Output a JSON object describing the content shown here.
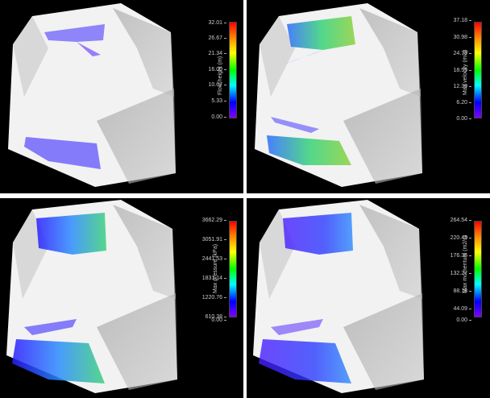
{
  "panels": [
    {
      "id": "flow-height",
      "colorbar_label": "Flow height (m)",
      "ticks": [
        "32.01",
        "26.67",
        "21.34",
        "16.00",
        "10.67",
        "5.33",
        "0.00"
      ],
      "overlay": "purple-sparse"
    },
    {
      "id": "max-velocity",
      "colorbar_label": "Max velocity (m/s)",
      "ticks": [
        "37.18",
        "30.98",
        "24.79",
        "18.59",
        "12.39",
        "6.20",
        "0.00"
      ],
      "overlay": "green-blue"
    },
    {
      "id": "max-pressure",
      "colorbar_label": "Max pressure (kPa)",
      "ticks": [
        "3662.29",
        "3051.91",
        "2441.53",
        "1831.14",
        "1220.76",
        "610.38",
        "0.00"
      ],
      "overlay": "blue-green"
    },
    {
      "id": "max-momentum",
      "colorbar_label": "Max momentum (m2/s)",
      "ticks": [
        "264.54",
        "220.45",
        "176.36",
        "132.27",
        "88.18",
        "44.09",
        "0.00"
      ],
      "overlay": "blue-purple"
    }
  ]
}
